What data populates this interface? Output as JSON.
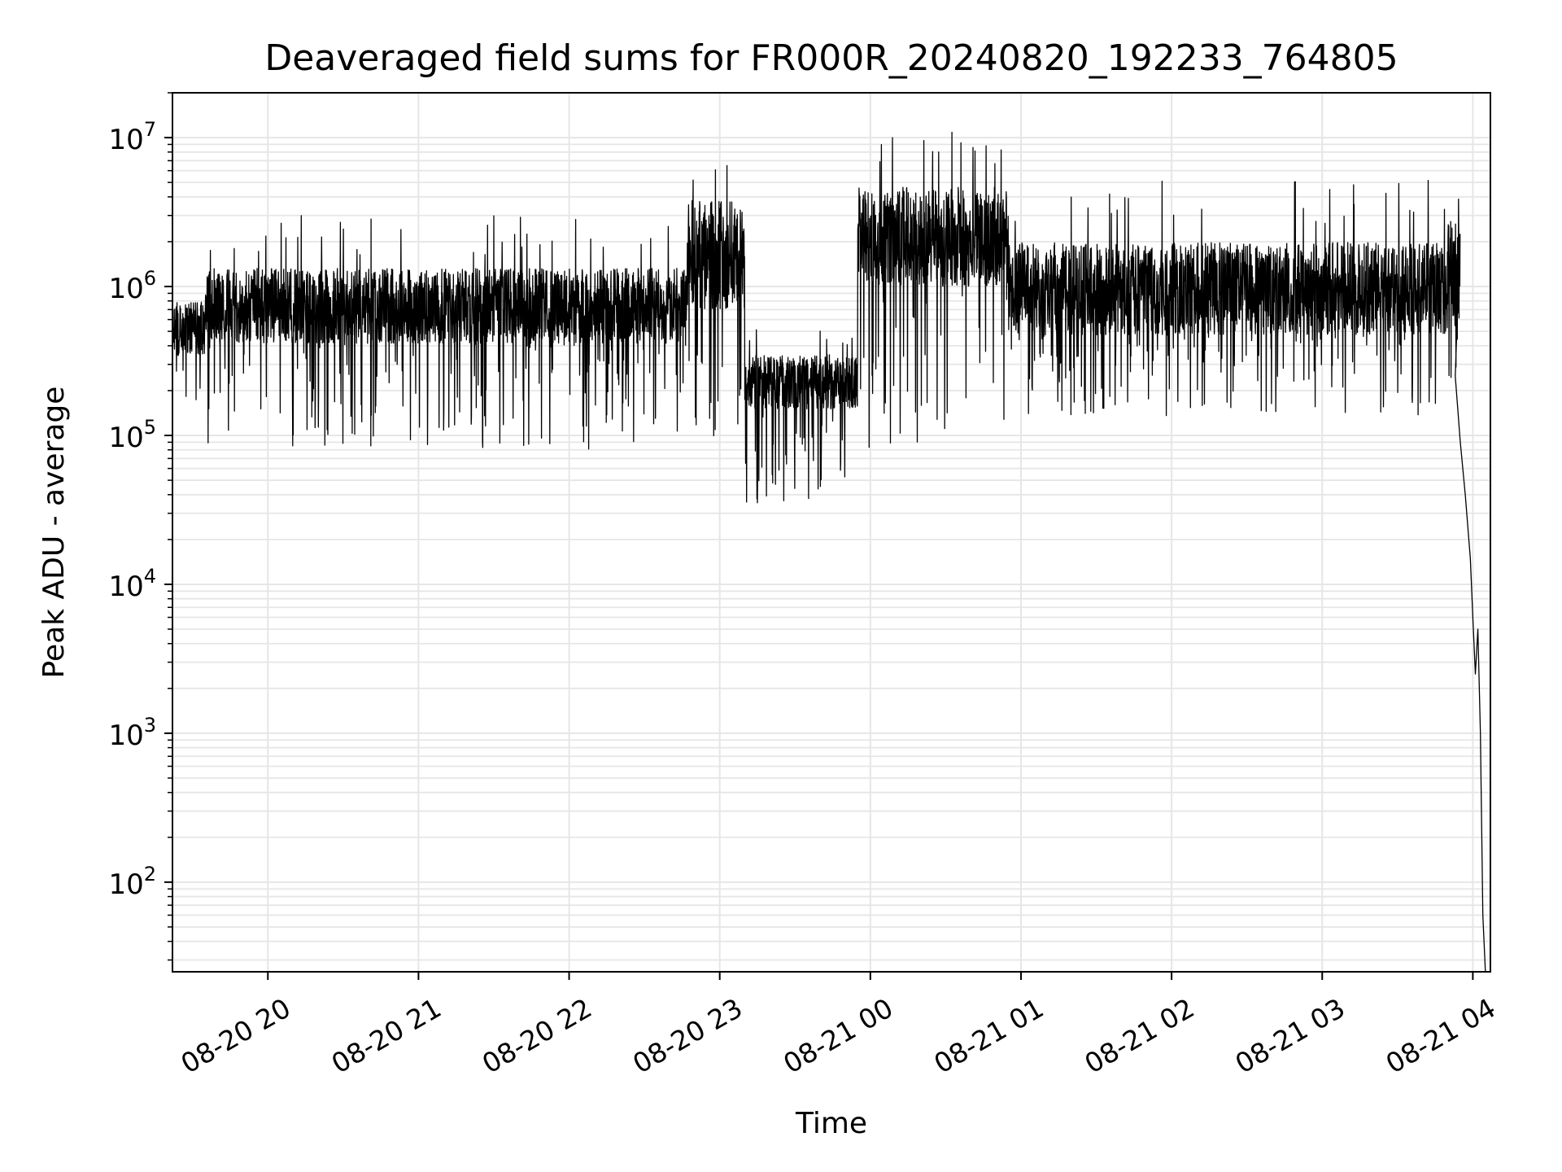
{
  "chart_data": {
    "type": "line",
    "title": "Deaveraged field sums for FR000R_20240820_192233_764805",
    "xlabel": "Time",
    "ylabel": "Peak ADU - average",
    "y_scale": "log",
    "grid": true,
    "grid_color": "#e6e6e6",
    "line_color": "#000000",
    "x_range": [
      "2024-08-20 19:22",
      "2024-08-21 04:07"
    ],
    "y_range": [
      25,
      20000000
    ],
    "x_ticks": [
      {
        "value": "2024-08-20 20:00",
        "label": "08-20 20"
      },
      {
        "value": "2024-08-20 21:00",
        "label": "08-20 21"
      },
      {
        "value": "2024-08-20 22:00",
        "label": "08-20 22"
      },
      {
        "value": "2024-08-20 23:00",
        "label": "08-20 23"
      },
      {
        "value": "2024-08-21 00:00",
        "label": "08-21 00"
      },
      {
        "value": "2024-08-21 01:00",
        "label": "08-21 01"
      },
      {
        "value": "2024-08-21 02:00",
        "label": "08-21 02"
      },
      {
        "value": "2024-08-21 03:00",
        "label": "08-21 03"
      },
      {
        "value": "2024-08-21 04:00",
        "label": "08-21 04"
      }
    ],
    "y_ticks": [
      {
        "value": 100,
        "base": "10",
        "exp": "2"
      },
      {
        "value": 1000,
        "base": "10",
        "exp": "3"
      },
      {
        "value": 10000,
        "base": "10",
        "exp": "4"
      },
      {
        "value": 100000,
        "base": "10",
        "exp": "5"
      },
      {
        "value": 1000000,
        "base": "10",
        "exp": "6"
      },
      {
        "value": 10000000,
        "base": "10",
        "exp": "7"
      }
    ],
    "series": [
      {
        "segments": [
          {
            "start": "2024-08-20 19:22",
            "end": "2024-08-20 19:35",
            "median": 500000,
            "spread_low": 150000,
            "spread_high": 900000,
            "peak": 950000
          },
          {
            "start": "2024-08-20 19:35",
            "end": "2024-08-20 22:47",
            "median": 700000,
            "spread_low": 80000,
            "spread_high": 1600000,
            "peak": 3000000
          },
          {
            "start": "2024-08-20 22:47",
            "end": "2024-08-20 23:10",
            "median": 1500000,
            "spread_low": 90000,
            "spread_high": 5000000,
            "peak": 9500000
          },
          {
            "start": "2024-08-20 23:10",
            "end": "2024-08-20 23:55",
            "median": 220000,
            "spread_low": 35000,
            "spread_high": 400000,
            "peak": 550000
          },
          {
            "start": "2024-08-20 23:55",
            "end": "2024-08-21 00:55",
            "median": 2000000,
            "spread_low": 80000,
            "spread_high": 6000000,
            "peak": 11000000
          },
          {
            "start": "2024-08-21 00:55",
            "end": "2024-08-21 03:50",
            "median": 900000,
            "spread_low": 130000,
            "spread_high": 2500000,
            "peak": 5200000
          },
          {
            "start": "2024-08-21 03:50",
            "end": "2024-08-21 03:55",
            "median": 1200000,
            "spread_low": 200000,
            "spread_high": 3500000,
            "peak": 4000000
          }
        ],
        "tail": [
          {
            "x": "2024-08-21 03:53",
            "y": 250000
          },
          {
            "x": "2024-08-21 03:55",
            "y": 90000
          },
          {
            "x": "2024-08-21 03:57",
            "y": 40000
          },
          {
            "x": "2024-08-21 03:59",
            "y": 15000
          },
          {
            "x": "2024-08-21 04:00",
            "y": 6000
          },
          {
            "x": "2024-08-21 04:01",
            "y": 2500
          },
          {
            "x": "2024-08-21 04:02",
            "y": 5000
          },
          {
            "x": "2024-08-21 04:03",
            "y": 1000
          },
          {
            "x": "2024-08-21 04:04",
            "y": 60
          },
          {
            "x": "2024-08-21 04:05",
            "y": 25
          }
        ]
      }
    ]
  }
}
